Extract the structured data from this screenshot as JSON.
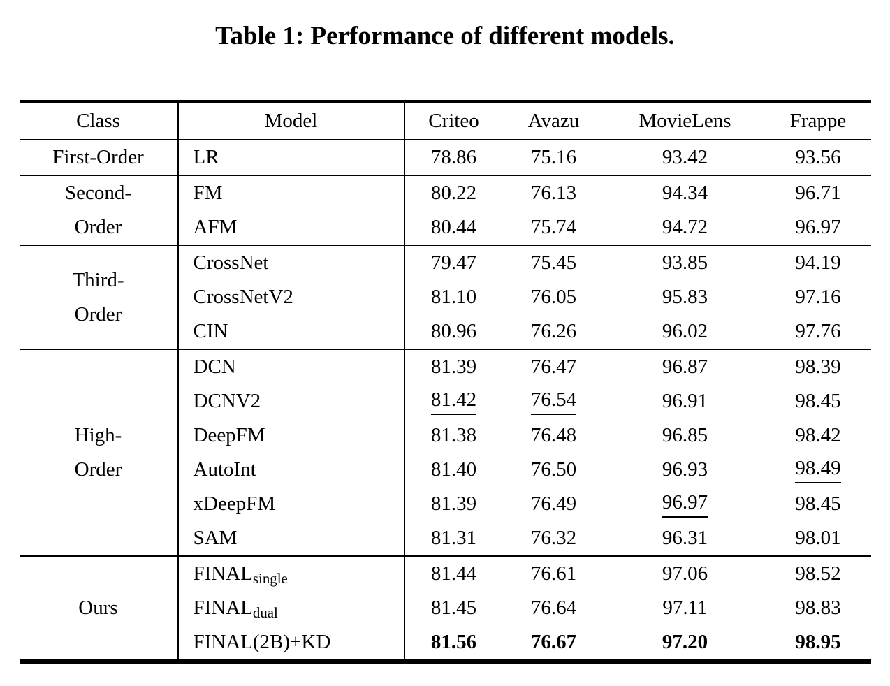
{
  "title": "Table 1: Performance of different models.",
  "colors": {
    "text": "#000000",
    "background": "#ffffff",
    "rule": "#000000"
  },
  "table": {
    "columns": [
      "Class",
      "Model",
      "Criteo",
      "Avazu",
      "MovieLens",
      "Frappe"
    ],
    "groups": [
      {
        "class": "First-Order",
        "rows": [
          {
            "model": "LR",
            "values": [
              "78.86",
              "75.16",
              "93.42",
              "93.56"
            ]
          }
        ]
      },
      {
        "class": "Second-\nOrder",
        "rows": [
          {
            "model": "FM",
            "values": [
              "80.22",
              "76.13",
              "94.34",
              "96.71"
            ]
          },
          {
            "model": "AFM",
            "values": [
              "80.44",
              "75.74",
              "94.72",
              "96.97"
            ]
          }
        ]
      },
      {
        "class": "Third-\nOrder",
        "rows": [
          {
            "model": "CrossNet",
            "values": [
              "79.47",
              "75.45",
              "93.85",
              "94.19"
            ]
          },
          {
            "model": "CrossNetV2",
            "values": [
              "81.10",
              "76.05",
              "95.83",
              "97.16"
            ]
          },
          {
            "model": "CIN",
            "values": [
              "80.96",
              "76.26",
              "96.02",
              "97.76"
            ]
          }
        ]
      },
      {
        "class": "High-\nOrder",
        "rows": [
          {
            "model": "DCN",
            "values": [
              "81.39",
              "76.47",
              "96.87",
              "98.39"
            ]
          },
          {
            "model": "DCNV2",
            "values": [
              "81.42",
              "76.54",
              "96.91",
              "98.45"
            ],
            "underline": [
              0,
              1
            ]
          },
          {
            "model": "DeepFM",
            "values": [
              "81.38",
              "76.48",
              "96.85",
              "98.42"
            ]
          },
          {
            "model": "AutoInt",
            "values": [
              "81.40",
              "76.50",
              "96.93",
              "98.49"
            ],
            "underline": [
              3
            ]
          },
          {
            "model": "xDeepFM",
            "values": [
              "81.39",
              "76.49",
              "96.97",
              "98.45"
            ],
            "underline": [
              2
            ]
          },
          {
            "model": "SAM",
            "values": [
              "81.31",
              "76.32",
              "96.31",
              "98.01"
            ]
          }
        ]
      },
      {
        "class": "Ours",
        "rows": [
          {
            "model": "FINAL",
            "model_sub": "single",
            "values": [
              "81.44",
              "76.61",
              "97.06",
              "98.52"
            ]
          },
          {
            "model": "FINAL",
            "model_sub": "dual",
            "values": [
              "81.45",
              "76.64",
              "97.11",
              "98.83"
            ]
          },
          {
            "model": "FINAL(2B)+KD",
            "values": [
              "81.56",
              "76.67",
              "97.20",
              "98.95"
            ],
            "bold": true
          }
        ]
      }
    ]
  }
}
